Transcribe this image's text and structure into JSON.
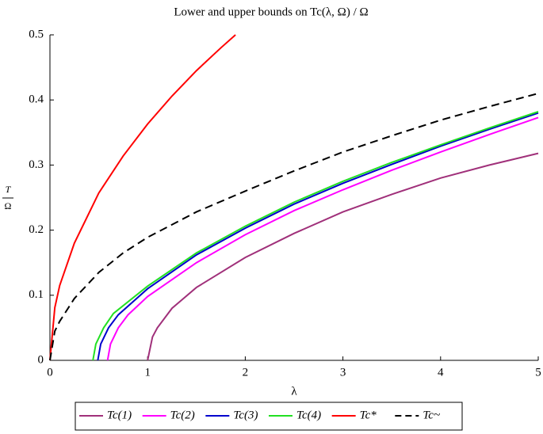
{
  "chart_data": {
    "type": "line",
    "title": "Lower and upper bounds on Tc(λ, Ω) / Ω",
    "xlabel": "λ",
    "ylabel": {
      "numerator": "T",
      "denominator": "Ω"
    },
    "xlim": [
      0,
      5
    ],
    "xticks": [
      0,
      1,
      2,
      3,
      4,
      5
    ],
    "ylim": [
      0,
      0.5
    ],
    "yticks": [
      0,
      0.1,
      0.2,
      0.3,
      0.4,
      0.5
    ],
    "legend": "bottom",
    "series": [
      {
        "name": "Tc(1)",
        "color": "#a0307a",
        "dash": false,
        "x": [
          1,
          1.05,
          1.1,
          1.25,
          1.5,
          2,
          2.5,
          3,
          3.5,
          4,
          4.5,
          5
        ],
        "values": [
          0,
          0.036,
          0.05,
          0.08,
          0.112,
          0.158,
          0.195,
          0.228,
          0.255,
          0.28,
          0.3,
          0.318
        ]
      },
      {
        "name": "Tc(2)",
        "color": "#ff00ff",
        "dash": false,
        "x": [
          0.59,
          0.62,
          0.7,
          0.8,
          1,
          1.5,
          2,
          2.5,
          3,
          3.5,
          4,
          4.5,
          5
        ],
        "values": [
          0,
          0.025,
          0.05,
          0.07,
          0.098,
          0.15,
          0.193,
          0.23,
          0.262,
          0.292,
          0.32,
          0.347,
          0.373
        ]
      },
      {
        "name": "Tc(3)",
        "color": "#0000cd",
        "dash": false,
        "x": [
          0.49,
          0.52,
          0.6,
          0.7,
          1,
          1.5,
          2,
          2.5,
          3,
          3.5,
          4,
          4.5,
          5
        ],
        "values": [
          0,
          0.025,
          0.05,
          0.07,
          0.11,
          0.162,
          0.203,
          0.24,
          0.272,
          0.301,
          0.329,
          0.355,
          0.38
        ]
      },
      {
        "name": "Tc(4)",
        "color": "#22e022",
        "dash": false,
        "x": [
          0.44,
          0.47,
          0.55,
          0.65,
          1,
          1.5,
          2,
          2.5,
          3,
          3.5,
          4,
          4.5,
          5
        ],
        "values": [
          0,
          0.025,
          0.05,
          0.072,
          0.114,
          0.165,
          0.206,
          0.243,
          0.275,
          0.304,
          0.331,
          0.357,
          0.382
        ]
      },
      {
        "name": "Tc*",
        "color": "#ff0000",
        "dash": false,
        "x": [
          0,
          0.05,
          0.1,
          0.25,
          0.5,
          0.75,
          1,
          1.25,
          1.5,
          1.75,
          1.9
        ],
        "values": [
          0,
          0.081,
          0.115,
          0.18,
          0.257,
          0.314,
          0.363,
          0.406,
          0.445,
          0.48,
          0.5
        ]
      },
      {
        "name": "Tc~",
        "color": "#000000",
        "dash": true,
        "x": [
          0,
          0.05,
          0.1,
          0.25,
          0.5,
          0.75,
          1,
          1.5,
          2,
          2.5,
          3,
          3.5,
          4,
          4.5,
          5
        ],
        "values": [
          0,
          0.045,
          0.06,
          0.095,
          0.135,
          0.165,
          0.189,
          0.228,
          0.26,
          0.291,
          0.32,
          0.345,
          0.369,
          0.39,
          0.41
        ]
      }
    ]
  }
}
